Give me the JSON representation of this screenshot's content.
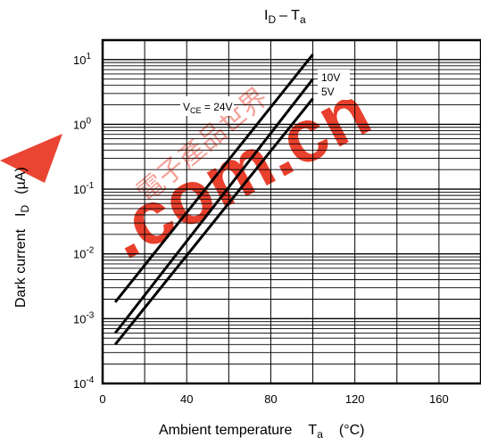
{
  "chart_data": {
    "type": "line",
    "title_main": "I",
    "title_sub": "D",
    "title_dash": "– T",
    "title_sub2": "a",
    "xlabel_text": "Ambient temperature",
    "xlabel_var": "T",
    "xlabel_var_sub": "a",
    "xlabel_unit": "(°C)",
    "ylabel_text": "Dark current",
    "ylabel_var": "I",
    "ylabel_var_sub": "D",
    "ylabel_unit": "(µA)",
    "xlim": [
      0,
      180
    ],
    "ylim": [
      0.0001,
      20
    ],
    "yscale": "log",
    "grid": true,
    "x_ticks": [
      "0",
      "40",
      "80",
      "120",
      "160"
    ],
    "y_ticks": [
      {
        "base": "10",
        "exp": "1"
      },
      {
        "base": "10",
        "exp": "0"
      },
      {
        "base": "10",
        "exp": "-1"
      },
      {
        "base": "10",
        "exp": "-2"
      },
      {
        "base": "10",
        "exp": "-3"
      },
      {
        "base": "10",
        "exp": "-4"
      }
    ],
    "series": [
      {
        "name": "24V",
        "x": [
          6,
          100
        ],
        "y": [
          0.0018,
          12
        ]
      },
      {
        "name": "10V",
        "x": [
          6,
          100
        ],
        "y": [
          0.0006,
          5
        ]
      },
      {
        "name": "5V",
        "x": [
          6,
          100
        ],
        "y": [
          0.0004,
          2.5
        ]
      }
    ],
    "annotations": {
      "vce_prefix": "V",
      "vce_sub": "CE",
      "vce_text": " = 24V",
      "v10": "10V",
      "v5": "5V"
    },
    "watermark": {
      "text": ".com.cn",
      "color": "#e8301c",
      "chinese_mark": "電子產品世界"
    },
    "colors": {
      "line": "#000000",
      "grid": "#000000",
      "watermark": "#e8301c"
    }
  }
}
